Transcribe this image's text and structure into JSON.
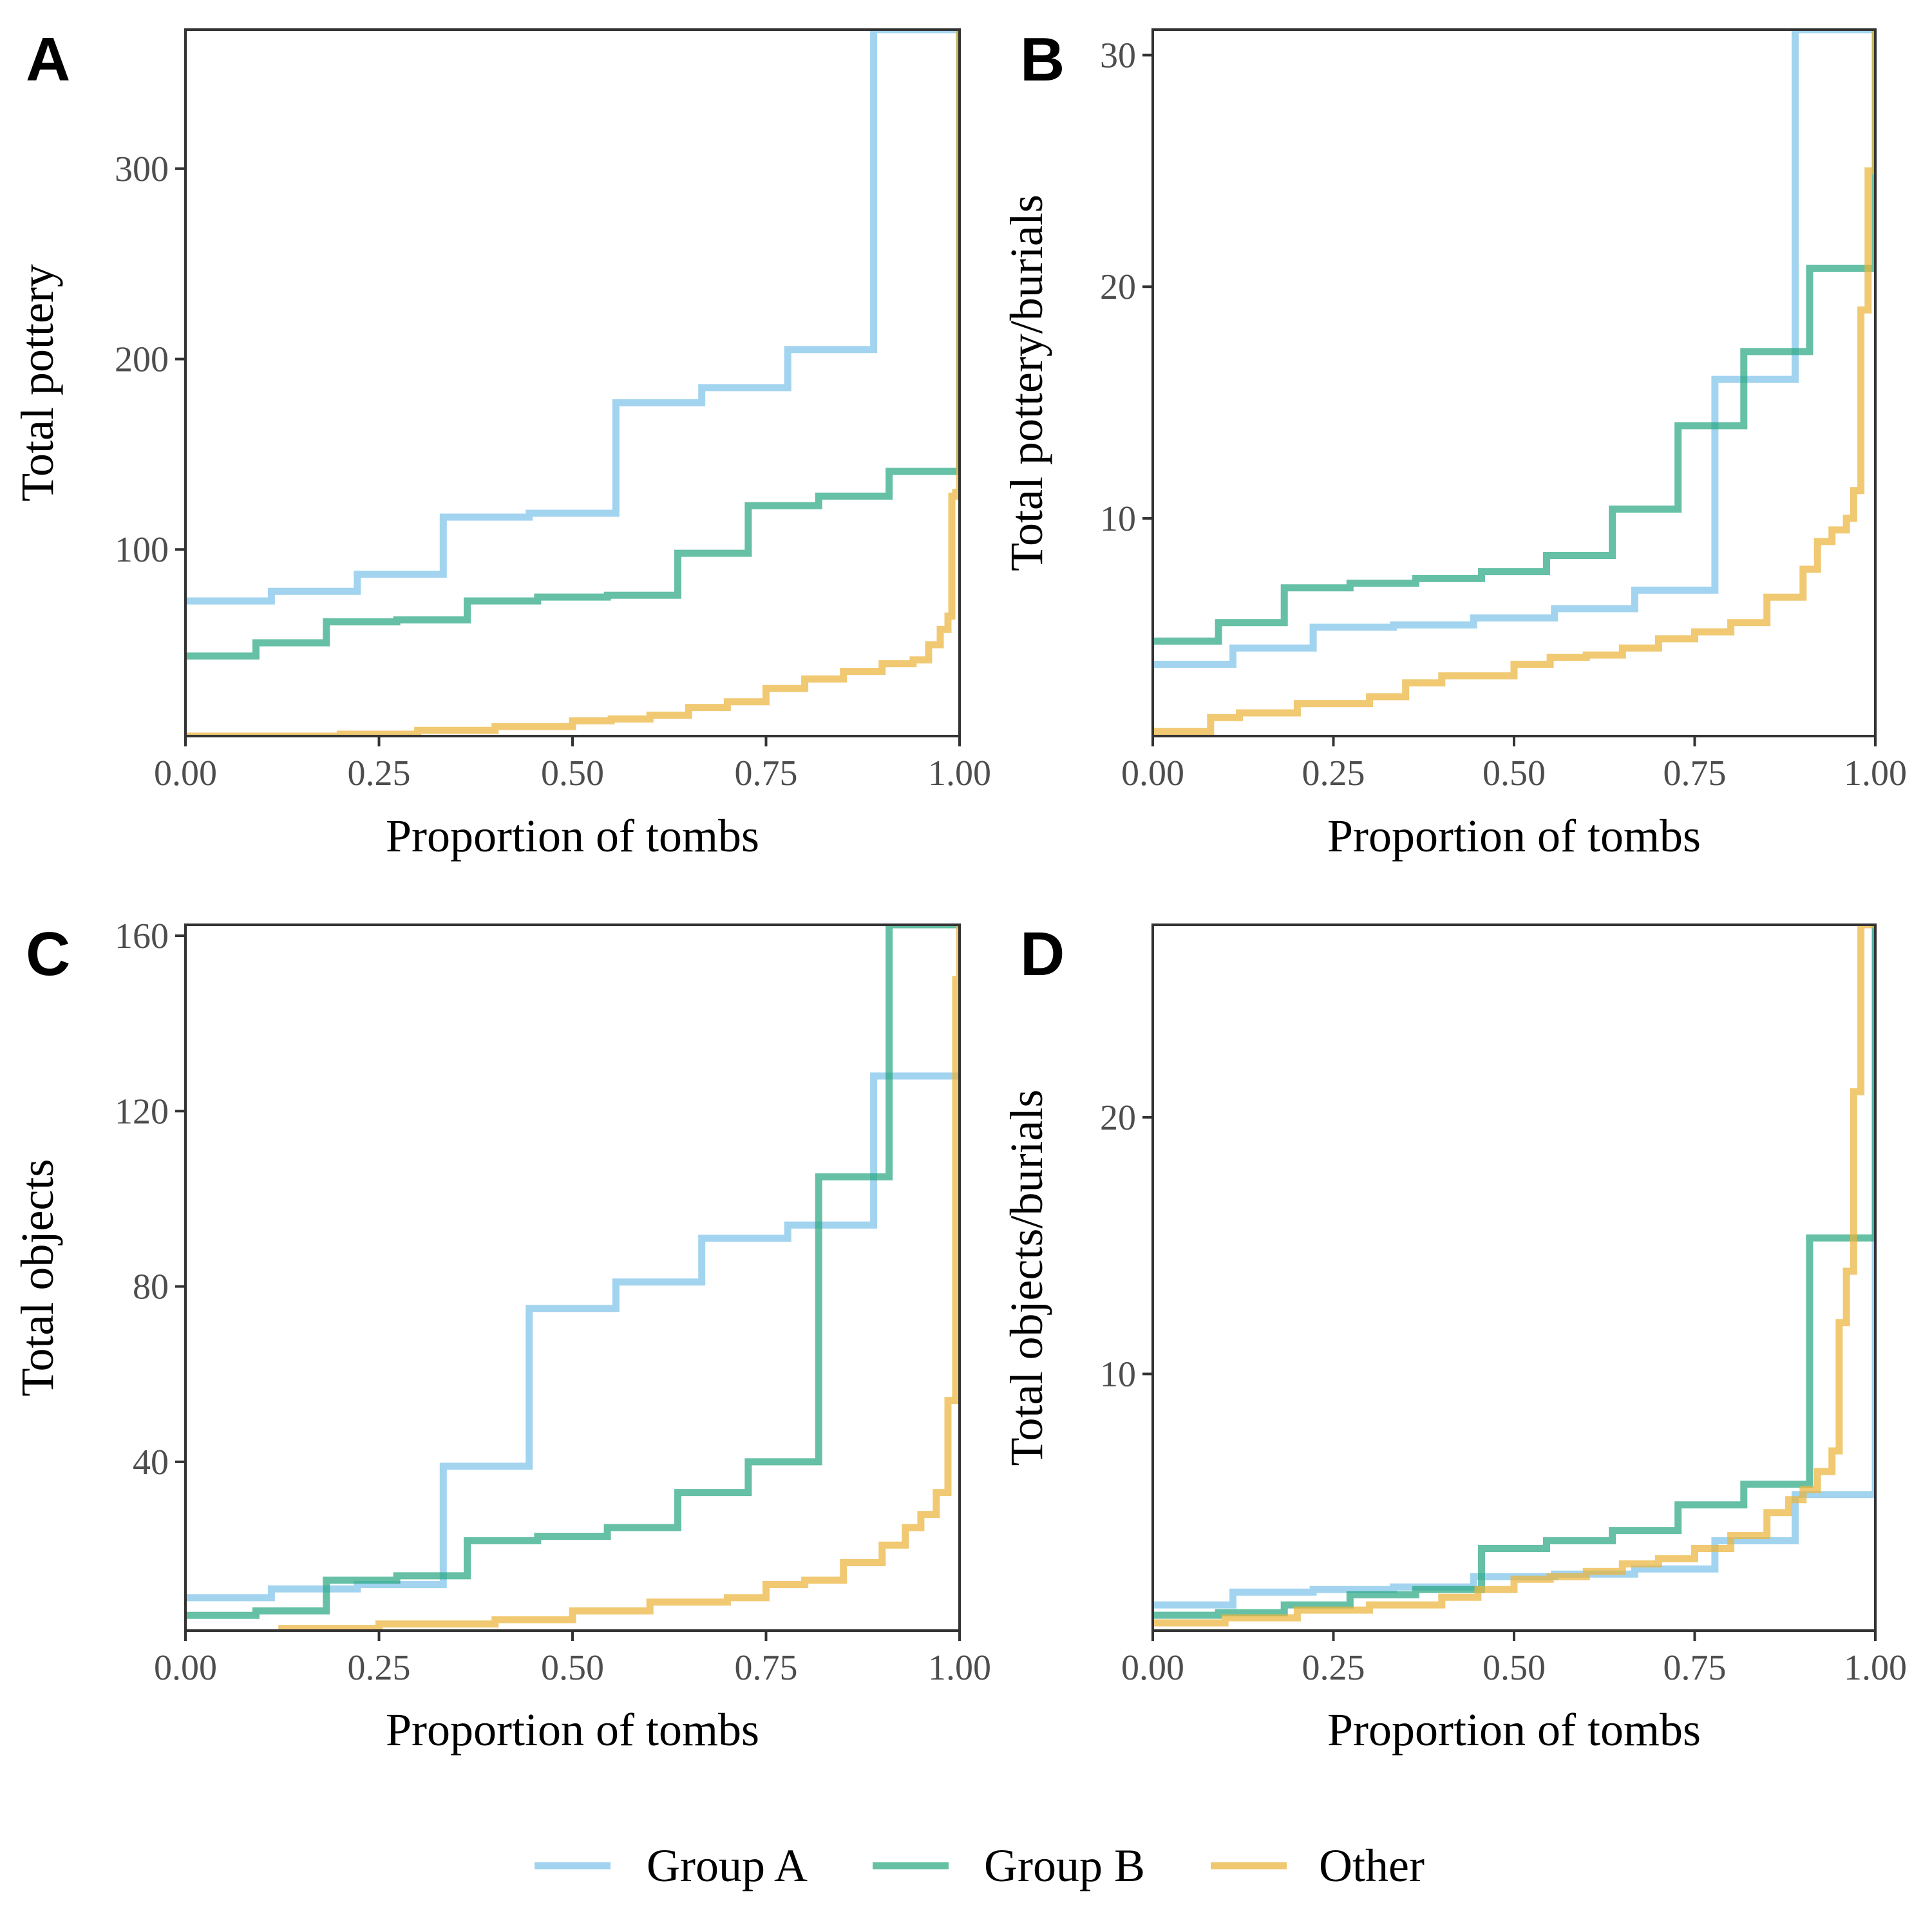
{
  "colors": {
    "Group A": "#7ec3ea",
    "Group B": "#2aa882",
    "Other": "#eab43b"
  },
  "legend": {
    "placement": "bottom",
    "items": [
      "Group A",
      "Group B",
      "Other"
    ]
  },
  "chart_data": [
    {
      "panel": "A",
      "type": "line",
      "step": true,
      "xlabel": "Proportion of tombs",
      "ylabel": "Total pottery",
      "xlim": [
        0,
        1
      ],
      "ylim": [
        2,
        373
      ],
      "xticks": [
        0,
        0.25,
        0.5,
        0.75,
        1
      ],
      "xtick_labels": [
        "0.00",
        "0.25",
        "0.50",
        "0.75",
        "1.00"
      ],
      "yticks": [
        100,
        200,
        300
      ],
      "ytick_labels": [
        "100",
        "200",
        "300"
      ],
      "grid": false,
      "series": [
        {
          "name": "Group A",
          "x": [
            0,
            0.111,
            0.222,
            0.333,
            0.444,
            0.556,
            0.667,
            0.778,
            0.889,
            1.0
          ],
          "y": [
            73,
            78,
            87,
            117,
            119,
            177,
            185,
            205,
            373,
            373
          ]
        },
        {
          "name": "Group B",
          "x": [
            0,
            0.091,
            0.182,
            0.273,
            0.364,
            0.455,
            0.545,
            0.636,
            0.727,
            0.818,
            0.909,
            1.0
          ],
          "y": [
            44,
            51,
            62,
            63,
            73,
            75,
            76,
            98,
            123,
            128,
            141,
            373
          ]
        },
        {
          "name": "Other",
          "x": [
            0,
            0.2,
            0.3,
            0.4,
            0.5,
            0.55,
            0.6,
            0.65,
            0.7,
            0.75,
            0.8,
            0.85,
            0.9,
            0.94,
            0.96,
            0.975,
            0.985,
            0.99,
            0.995,
            1.0
          ],
          "y": [
            2,
            3,
            5,
            7,
            10,
            11,
            13,
            17,
            20,
            27,
            32,
            36,
            40,
            42,
            50,
            58,
            65,
            128,
            130,
            373
          ]
        }
      ]
    },
    {
      "panel": "B",
      "type": "line",
      "step": true,
      "xlabel": "Proportion of tombs",
      "ylabel": "Total pottery/burials",
      "xlim": [
        0,
        1
      ],
      "ylim": [
        0.6,
        31.1
      ],
      "xticks": [
        0,
        0.25,
        0.5,
        0.75,
        1
      ],
      "xtick_labels": [
        "0.00",
        "0.25",
        "0.50",
        "0.75",
        "1.00"
      ],
      "yticks": [
        10,
        20,
        30
      ],
      "ytick_labels": [
        "10",
        "20",
        "30"
      ],
      "grid": false,
      "series": [
        {
          "name": "Group A",
          "x": [
            0,
            0.111,
            0.222,
            0.333,
            0.444,
            0.556,
            0.667,
            0.778,
            0.889,
            1.0
          ],
          "y": [
            3.7,
            4.4,
            5.3,
            5.4,
            5.7,
            6.1,
            6.9,
            16.0,
            31.1,
            31.1
          ]
        },
        {
          "name": "Group B",
          "x": [
            0,
            0.091,
            0.182,
            0.273,
            0.364,
            0.455,
            0.545,
            0.636,
            0.727,
            0.818,
            0.909,
            1.0
          ],
          "y": [
            4.7,
            5.5,
            7.0,
            7.2,
            7.4,
            7.7,
            8.4,
            10.4,
            14.0,
            17.2,
            20.8,
            31.1
          ]
        },
        {
          "name": "Other",
          "x": [
            0,
            0.08,
            0.12,
            0.2,
            0.3,
            0.35,
            0.4,
            0.5,
            0.55,
            0.6,
            0.65,
            0.7,
            0.75,
            0.8,
            0.85,
            0.9,
            0.92,
            0.94,
            0.96,
            0.97,
            0.98,
            0.99,
            1.0
          ],
          "y": [
            0.8,
            1.4,
            1.6,
            2.0,
            2.3,
            2.9,
            3.2,
            3.7,
            4.0,
            4.1,
            4.4,
            4.8,
            5.1,
            5.5,
            6.6,
            7.8,
            9.0,
            9.5,
            10.0,
            11.2,
            19.0,
            25.0,
            31.1
          ]
        }
      ]
    },
    {
      "panel": "C",
      "type": "line",
      "step": true,
      "xlabel": "Proportion of tombs",
      "ylabel": "Total objects",
      "xlim": [
        0,
        1
      ],
      "ylim": [
        1.5,
        162.5
      ],
      "xticks": [
        0,
        0.25,
        0.5,
        0.75,
        1
      ],
      "xtick_labels": [
        "0.00",
        "0.25",
        "0.50",
        "0.75",
        "1.00"
      ],
      "yticks": [
        40,
        80,
        120,
        160
      ],
      "ytick_labels": [
        "40",
        "80",
        "120",
        "160"
      ],
      "grid": false,
      "series": [
        {
          "name": "Group A",
          "x": [
            0,
            0.111,
            0.222,
            0.333,
            0.444,
            0.556,
            0.667,
            0.778,
            0.889,
            1.0
          ],
          "y": [
            9,
            11,
            12,
            39,
            75,
            81,
            91,
            94,
            128,
            128
          ]
        },
        {
          "name": "Group B",
          "x": [
            0,
            0.091,
            0.182,
            0.273,
            0.364,
            0.455,
            0.545,
            0.636,
            0.727,
            0.818,
            0.909,
            1.0
          ],
          "y": [
            5,
            6,
            13,
            14,
            22,
            23,
            25,
            33,
            40,
            105,
            162.5,
            162.5
          ]
        },
        {
          "name": "Other",
          "x": [
            0.12,
            0.25,
            0.4,
            0.5,
            0.6,
            0.7,
            0.75,
            0.8,
            0.85,
            0.9,
            0.93,
            0.95,
            0.97,
            0.985,
            0.995,
            1.0
          ],
          "y": [
            2,
            3,
            4,
            6,
            8,
            9,
            12,
            13,
            17,
            21,
            25,
            28,
            33,
            54,
            150,
            162.5
          ]
        }
      ]
    },
    {
      "panel": "D",
      "type": "line",
      "step": true,
      "xlabel": "Proportion of tombs",
      "ylabel": "Total objects/burials",
      "xlim": [
        0,
        1
      ],
      "ylim": [
        0,
        27.5
      ],
      "xticks": [
        0,
        0.25,
        0.5,
        0.75,
        1
      ],
      "xtick_labels": [
        "0.00",
        "0.25",
        "0.50",
        "0.75",
        "1.00"
      ],
      "yticks": [
        10,
        20
      ],
      "ytick_labels": [
        "10",
        "20"
      ],
      "grid": false,
      "series": [
        {
          "name": "Group A",
          "x": [
            0,
            0.111,
            0.222,
            0.333,
            0.444,
            0.556,
            0.667,
            0.778,
            0.889,
            1.0
          ],
          "y": [
            1.0,
            1.5,
            1.6,
            1.7,
            2.1,
            2.2,
            2.4,
            3.5,
            5.3,
            27.5
          ]
        },
        {
          "name": "Group B",
          "x": [
            0,
            0.091,
            0.182,
            0.273,
            0.364,
            0.455,
            0.545,
            0.636,
            0.727,
            0.818,
            0.909,
            1.0
          ],
          "y": [
            0.6,
            0.7,
            1.0,
            1.4,
            1.6,
            3.2,
            3.5,
            3.9,
            4.9,
            5.7,
            15.3,
            27.5
          ]
        },
        {
          "name": "Other",
          "x": [
            0,
            0.1,
            0.2,
            0.3,
            0.4,
            0.45,
            0.5,
            0.55,
            0.6,
            0.65,
            0.7,
            0.75,
            0.8,
            0.85,
            0.88,
            0.9,
            0.92,
            0.94,
            0.95,
            0.96,
            0.97,
            0.98,
            1.0
          ],
          "y": [
            0.3,
            0.5,
            0.8,
            1.0,
            1.3,
            1.6,
            2.0,
            2.1,
            2.3,
            2.6,
            2.8,
            3.2,
            3.7,
            4.6,
            5.1,
            5.5,
            6.2,
            7.0,
            12.0,
            14.0,
            21.0,
            27.5,
            27.5
          ]
        }
      ]
    }
  ]
}
